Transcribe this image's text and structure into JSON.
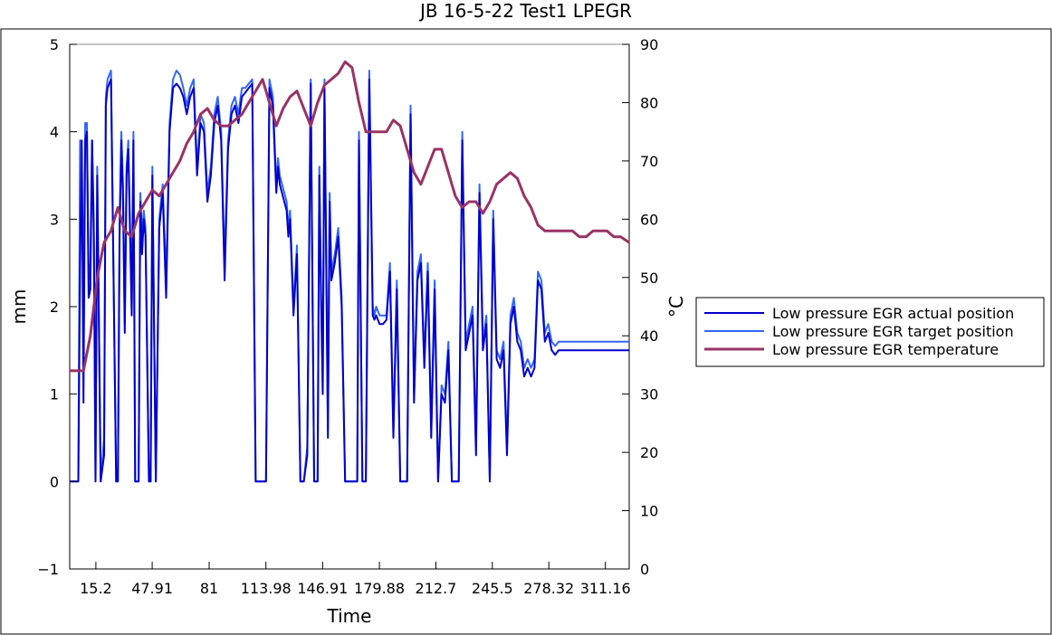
{
  "chart_data": {
    "type": "line",
    "title": "JB 16-5-22 Test1 LPEGR",
    "xlabel": "Time",
    "ylabel": "mm",
    "ylabel_right": "°C",
    "xlim": [
      0,
      325
    ],
    "ylim": [
      -1,
      5
    ],
    "ylim_right": [
      0,
      90
    ],
    "x_ticks": [
      15.2,
      47.91,
      81,
      113.98,
      146.91,
      179.88,
      212.7,
      245.5,
      278.32,
      311.16
    ],
    "x_tick_labels": [
      "15.2",
      "47.91",
      "81",
      "113.98",
      "146.91",
      "179.88",
      "212.7",
      "245.5",
      "278.32",
      "311.16"
    ],
    "y_ticks": [
      -1,
      0,
      1,
      2,
      3,
      4,
      5
    ],
    "y_tick_labels": [
      "−1",
      "0",
      "1",
      "2",
      "3",
      "4",
      "5"
    ],
    "y_ticks_right": [
      0,
      10,
      20,
      30,
      40,
      50,
      60,
      70,
      80,
      90
    ],
    "y_tick_labels_right": [
      "0",
      "10",
      "20",
      "30",
      "40",
      "50",
      "60",
      "70",
      "80",
      "90"
    ],
    "grid": false,
    "legend_position": "right",
    "series": [
      {
        "name": "Low pressure EGR actual position",
        "axis": "left",
        "color": "#0000cc",
        "x": [
          0,
          5,
          6,
          7,
          8,
          9,
          10,
          11,
          12,
          13,
          14,
          15,
          16,
          18,
          20,
          21,
          22,
          24,
          27,
          28,
          29,
          30,
          31,
          32,
          33,
          34,
          36,
          37,
          38,
          40,
          41,
          42,
          43,
          44,
          46,
          47,
          48,
          50,
          52,
          54,
          56,
          58,
          60,
          62,
          64,
          66,
          68,
          70,
          72,
          74,
          76,
          78,
          80,
          82,
          84,
          86,
          88,
          90,
          92,
          94,
          96,
          98,
          100,
          102,
          104,
          106,
          108,
          110,
          112,
          114,
          116,
          118,
          120,
          121,
          122,
          126,
          127,
          128,
          130,
          132,
          134,
          136,
          138,
          140,
          142,
          144,
          145,
          146,
          147,
          148,
          150,
          151,
          152,
          154,
          156,
          158,
          160,
          162,
          164,
          166,
          167,
          168,
          170,
          172,
          174,
          176,
          177,
          178,
          180,
          182,
          184,
          186,
          188,
          190,
          192,
          194,
          196,
          198,
          200,
          202,
          204,
          206,
          208,
          210,
          212,
          214,
          216,
          218,
          220,
          222,
          224,
          226,
          228,
          230,
          232,
          234,
          236,
          238,
          240,
          242,
          244,
          246,
          248,
          250,
          252,
          254,
          256,
          258,
          260,
          262,
          264,
          266,
          268,
          270,
          272,
          274,
          276,
          278,
          280,
          282,
          284,
          286,
          288,
          290,
          292,
          294,
          296,
          298,
          300,
          302,
          304,
          306,
          308,
          310,
          312,
          314,
          316,
          318,
          320,
          322,
          325
        ],
        "y": [
          0,
          0,
          2.4,
          3.9,
          0.9,
          3.9,
          4.0,
          2.1,
          2.2,
          3.9,
          2.8,
          0,
          3.5,
          0,
          0.3,
          4.3,
          4.5,
          4.6,
          0,
          0,
          2.8,
          3.9,
          3.2,
          1.7,
          3.5,
          3.8,
          1.9,
          3.9,
          0,
          0,
          3.2,
          2.6,
          3.0,
          2.8,
          0,
          0,
          3.5,
          0,
          2.9,
          3.3,
          2.1,
          4.0,
          4.5,
          4.55,
          4.5,
          4.4,
          4.2,
          4.4,
          4.5,
          3.5,
          4.1,
          4.0,
          3.2,
          3.5,
          4.1,
          4.3,
          3.9,
          2.3,
          3.8,
          4.2,
          4.3,
          4.1,
          4.4,
          4.45,
          4.5,
          4.55,
          0,
          0,
          0,
          0,
          4.5,
          4.3,
          3.3,
          3.6,
          3.4,
          3.1,
          2.8,
          3.0,
          1.9,
          2.6,
          0,
          0,
          0.3,
          4.55,
          0,
          0,
          3.5,
          2.1,
          1.0,
          4.5,
          0.5,
          3.2,
          2.3,
          2.5,
          2.8,
          2.0,
          0,
          0,
          0,
          0,
          0,
          3.9,
          0,
          0,
          4.6,
          1.9,
          1.85,
          1.9,
          1.8,
          1.8,
          1.85,
          2.4,
          0.5,
          2.2,
          0,
          0,
          0,
          4.2,
          0.9,
          2.3,
          2.5,
          1.3,
          2.4,
          0.5,
          2.2,
          0,
          1.0,
          0.9,
          1.5,
          0,
          0,
          0,
          3.9,
          1.5,
          1.7,
          1.9,
          0.3,
          3.3,
          1.5,
          1.8,
          0,
          3.0,
          1.4,
          1.3,
          1.5,
          0.3,
          1.8,
          2.0,
          1.6,
          1.5,
          1.2,
          1.3,
          1.2,
          1.3,
          2.3,
          2.2,
          1.6,
          1.7,
          1.5,
          1.45,
          1.5,
          1.5,
          1.5,
          1.5,
          1.5,
          1.5,
          1.5,
          1.5,
          1.5,
          1.5,
          1.5,
          1.5,
          1.5,
          1.5,
          1.5,
          1.5,
          1.5,
          1.5,
          1.5,
          1.5,
          1.5
        ]
      },
      {
        "name": "Low pressure EGR target position",
        "axis": "left",
        "color": "#3366ff",
        "x": [
          0,
          5,
          6,
          7,
          8,
          9,
          10,
          11,
          12,
          13,
          14,
          15,
          16,
          18,
          20,
          21,
          22,
          24,
          27,
          28,
          29,
          30,
          31,
          32,
          33,
          34,
          36,
          37,
          38,
          40,
          41,
          42,
          43,
          44,
          46,
          47,
          48,
          50,
          52,
          54,
          56,
          58,
          60,
          62,
          64,
          66,
          68,
          70,
          72,
          74,
          76,
          78,
          80,
          82,
          84,
          86,
          88,
          90,
          92,
          94,
          96,
          98,
          100,
          102,
          104,
          106,
          108,
          110,
          112,
          114,
          116,
          118,
          120,
          121,
          122,
          126,
          127,
          128,
          130,
          132,
          134,
          136,
          138,
          140,
          142,
          144,
          145,
          146,
          147,
          148,
          150,
          151,
          152,
          154,
          156,
          158,
          160,
          162,
          164,
          166,
          167,
          168,
          170,
          172,
          174,
          176,
          177,
          178,
          180,
          182,
          184,
          186,
          188,
          190,
          192,
          194,
          196,
          198,
          200,
          202,
          204,
          206,
          208,
          210,
          212,
          214,
          216,
          218,
          220,
          222,
          224,
          226,
          228,
          230,
          232,
          234,
          236,
          238,
          240,
          242,
          244,
          246,
          248,
          250,
          252,
          254,
          256,
          258,
          260,
          262,
          264,
          266,
          268,
          270,
          272,
          274,
          276,
          278,
          280,
          282,
          284,
          286,
          288,
          290,
          292,
          294,
          296,
          298,
          300,
          302,
          304,
          306,
          308,
          310,
          312,
          314,
          316,
          318,
          320,
          322,
          325
        ],
        "y": [
          0,
          0,
          3.9,
          3.8,
          2.0,
          4.1,
          4.1,
          2.3,
          2.5,
          3.9,
          3.0,
          0,
          3.6,
          0,
          0.5,
          4.4,
          4.6,
          4.7,
          0,
          0,
          3.0,
          4.0,
          3.4,
          1.8,
          3.6,
          3.9,
          2.0,
          4.0,
          0,
          0,
          3.3,
          2.8,
          3.1,
          2.9,
          0,
          0,
          3.6,
          0,
          3.0,
          3.4,
          2.3,
          4.1,
          4.6,
          4.7,
          4.65,
          4.5,
          4.3,
          4.5,
          4.6,
          3.6,
          4.2,
          4.1,
          3.3,
          3.6,
          4.2,
          4.4,
          4.0,
          2.5,
          3.9,
          4.3,
          4.4,
          4.2,
          4.5,
          4.5,
          4.55,
          4.6,
          0,
          0,
          0,
          0,
          4.6,
          4.4,
          3.4,
          3.7,
          3.5,
          3.2,
          2.9,
          3.1,
          2.0,
          2.7,
          0,
          0,
          0.4,
          4.6,
          0,
          0,
          3.6,
          2.2,
          1.1,
          4.6,
          0.6,
          3.3,
          2.4,
          2.6,
          2.9,
          2.1,
          0,
          0,
          0,
          0,
          0,
          4.0,
          0,
          0,
          4.7,
          2.0,
          1.9,
          2.0,
          1.9,
          1.9,
          1.9,
          2.5,
          0.6,
          2.3,
          0,
          0,
          0,
          4.3,
          1.0,
          2.4,
          2.6,
          1.4,
          2.5,
          0.6,
          2.3,
          0,
          1.1,
          1.0,
          1.6,
          0,
          0,
          0,
          4.0,
          1.6,
          1.8,
          2.0,
          0.4,
          3.4,
          1.6,
          1.9,
          0,
          3.1,
          1.5,
          1.4,
          1.6,
          0.4,
          1.9,
          2.1,
          1.7,
          1.6,
          1.3,
          1.4,
          1.3,
          1.4,
          2.4,
          2.3,
          1.7,
          1.8,
          1.6,
          1.55,
          1.6,
          1.6,
          1.6,
          1.6,
          1.6,
          1.6,
          1.6,
          1.6,
          1.6,
          1.6,
          1.6,
          1.6,
          1.6,
          1.6,
          1.6,
          1.6,
          1.6,
          1.6,
          1.6,
          1.6,
          1.6
        ]
      },
      {
        "name": "Low pressure EGR temperature",
        "axis": "right",
        "color": "#993366",
        "x": [
          0,
          4,
          8,
          12,
          16,
          20,
          24,
          28,
          32,
          36,
          40,
          44,
          48,
          52,
          56,
          60,
          64,
          68,
          72,
          76,
          80,
          84,
          88,
          92,
          96,
          100,
          104,
          108,
          112,
          116,
          120,
          124,
          128,
          132,
          136,
          140,
          144,
          148,
          152,
          156,
          160,
          164,
          168,
          172,
          176,
          180,
          184,
          188,
          192,
          196,
          200,
          204,
          208,
          212,
          216,
          220,
          224,
          228,
          232,
          236,
          240,
          244,
          248,
          252,
          256,
          260,
          264,
          268,
          272,
          276,
          280,
          284,
          288,
          292,
          296,
          300,
          304,
          308,
          312,
          316,
          320,
          325
        ],
        "y": [
          34,
          34,
          34,
          40,
          50,
          56,
          58,
          62,
          58,
          57,
          61,
          63,
          65,
          64,
          66,
          68,
          70,
          73,
          75,
          78,
          79,
          77,
          76,
          76,
          77,
          78,
          80,
          82,
          84,
          80,
          76,
          79,
          81,
          82,
          79,
          76,
          80,
          83,
          84,
          85,
          87,
          86,
          80,
          75,
          75,
          75,
          75,
          77,
          76,
          72,
          68,
          66,
          69,
          72,
          72,
          68,
          64,
          62,
          63,
          63,
          61,
          63,
          66,
          67,
          68,
          67,
          64,
          62,
          59,
          58,
          58,
          58,
          58,
          58,
          57,
          57,
          58,
          58,
          58,
          57,
          57,
          56
        ]
      }
    ]
  }
}
